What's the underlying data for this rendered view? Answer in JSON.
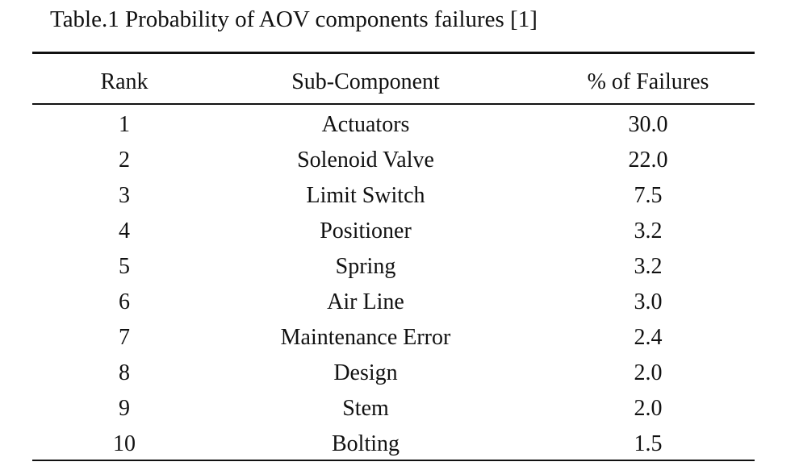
{
  "table": {
    "caption": "Table.1 Probability of AOV components failures [1]",
    "headers": {
      "rank": "Rank",
      "sub_component": "Sub-Component",
      "failures": "% of Failures"
    },
    "rows": [
      {
        "rank": "1",
        "sub_component": "Actuators",
        "failures": "30.0"
      },
      {
        "rank": "2",
        "sub_component": "Solenoid Valve",
        "failures": "22.0"
      },
      {
        "rank": "3",
        "sub_component": "Limit Switch",
        "failures": "7.5"
      },
      {
        "rank": "4",
        "sub_component": "Positioner",
        "failures": "3.2"
      },
      {
        "rank": "5",
        "sub_component": "Spring",
        "failures": "3.2"
      },
      {
        "rank": "6",
        "sub_component": "Air Line",
        "failures": "3.0"
      },
      {
        "rank": "7",
        "sub_component": "Maintenance Error",
        "failures": "2.4"
      },
      {
        "rank": "8",
        "sub_component": "Design",
        "failures": "2.0"
      },
      {
        "rank": "9",
        "sub_component": "Stem",
        "failures": "2.0"
      },
      {
        "rank": "10",
        "sub_component": "Bolting",
        "failures": "1.5"
      }
    ]
  }
}
